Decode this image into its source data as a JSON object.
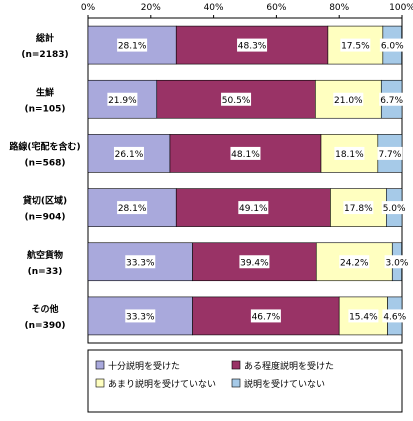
{
  "chart_data": {
    "type": "bar",
    "orientation": "horizontal",
    "stacked": true,
    "title": "",
    "xlabel": "",
    "ylabel": "",
    "xlim": [
      0,
      100
    ],
    "x_ticks": [
      "0%",
      "20%",
      "40%",
      "60%",
      "80%",
      "100%"
    ],
    "categories": [
      {
        "name": "総計",
        "n": "(n=2183)"
      },
      {
        "name": "生鮮",
        "n": "(n=105)"
      },
      {
        "name": "路線(宅配を含む)",
        "n": "(n=568)"
      },
      {
        "name": "貸切(区域)",
        "n": "(n=904)"
      },
      {
        "name": "航空貨物",
        "n": "(n=33)"
      },
      {
        "name": "その他",
        "n": "(n=390)"
      }
    ],
    "series": [
      {
        "name": "十分説明を受けた",
        "color": "#a9a9dc",
        "values": [
          28.1,
          21.9,
          26.1,
          28.1,
          33.3,
          33.3
        ],
        "labels": [
          "28.1%",
          "21.9%",
          "26.1%",
          "28.1%",
          "33.3%",
          "33.3%"
        ]
      },
      {
        "name": "ある程度説明を受けた",
        "color": "#993366",
        "values": [
          48.3,
          50.5,
          48.1,
          49.1,
          39.4,
          46.7
        ],
        "labels": [
          "48.3%",
          "50.5%",
          "48.1%",
          "49.1%",
          "39.4%",
          "46.7%"
        ]
      },
      {
        "name": "あまり説明を受けていない",
        "color": "#ffffc0",
        "values": [
          17.5,
          21.0,
          18.1,
          17.8,
          24.2,
          15.4
        ],
        "labels": [
          "17.5%",
          "21.0%",
          "18.1%",
          "17.8%",
          "24.2%",
          "15.4%"
        ]
      },
      {
        "name": "説明を受けていない",
        "color": "#a6cae8",
        "values": [
          6.0,
          6.7,
          7.7,
          5.0,
          3.0,
          4.6
        ],
        "labels": [
          "6.0%",
          "6.7%",
          "7.7%",
          "5.0%",
          "3.0%",
          "4.6%"
        ]
      }
    ],
    "grid": false,
    "legend_position": "bottom"
  }
}
